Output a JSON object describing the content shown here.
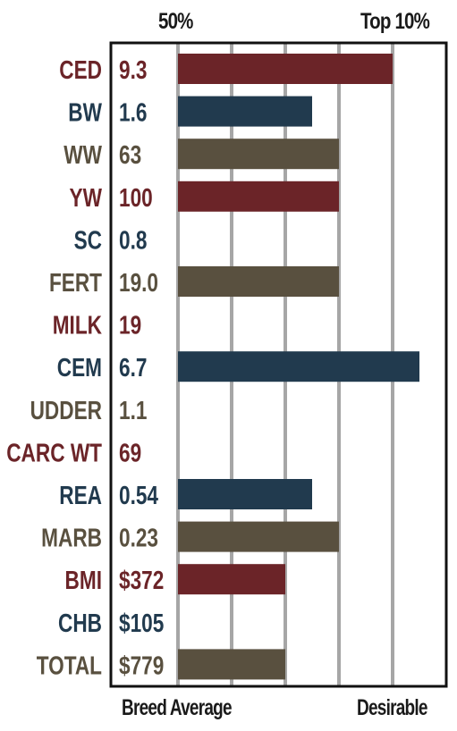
{
  "header": {
    "left_label": "50%",
    "right_label": "Top 10%"
  },
  "footer": {
    "left_label": "Breed Average",
    "right_label": "Desirable"
  },
  "colors": {
    "red": "#6b2428",
    "blue": "#213a4e",
    "brown": "#59503f",
    "grid": "#a6a6a6",
    "frame": "#111111"
  },
  "chart_data": {
    "type": "bar",
    "orientation": "horizontal",
    "scale_note": "bar length in gridline steps beyond the 50% (breed average) baseline",
    "xlim": [
      0,
      4.5
    ],
    "grid": true,
    "rows": [
      {
        "trait": "CED",
        "value": "9.3",
        "bar": 4.0,
        "color": "red"
      },
      {
        "trait": "BW",
        "value": "1.6",
        "bar": 2.5,
        "color": "blue"
      },
      {
        "trait": "WW",
        "value": "63",
        "bar": 3.0,
        "color": "brown"
      },
      {
        "trait": "YW",
        "value": "100",
        "bar": 3.0,
        "color": "red"
      },
      {
        "trait": "SC",
        "value": "0.8",
        "bar": 0,
        "color": "blue"
      },
      {
        "trait": "FERT",
        "value": "19.0",
        "bar": 3.0,
        "color": "brown"
      },
      {
        "trait": "MILK",
        "value": "19",
        "bar": 0,
        "color": "red"
      },
      {
        "trait": "CEM",
        "value": "6.7",
        "bar": 4.5,
        "color": "blue"
      },
      {
        "trait": "UDDER",
        "value": "1.1",
        "bar": 0,
        "color": "brown"
      },
      {
        "trait": "CARC WT",
        "value": "69",
        "bar": 0,
        "color": "red"
      },
      {
        "trait": "REA",
        "value": "0.54",
        "bar": 2.5,
        "color": "blue"
      },
      {
        "trait": "MARB",
        "value": "0.23",
        "bar": 3.0,
        "color": "brown"
      },
      {
        "trait": "BMI",
        "value": "$372",
        "bar": 2.0,
        "color": "red"
      },
      {
        "trait": "CHB",
        "value": "$105",
        "bar": 0,
        "color": "blue"
      },
      {
        "trait": "TOTAL",
        "value": "$779",
        "bar": 2.0,
        "color": "brown"
      }
    ]
  }
}
